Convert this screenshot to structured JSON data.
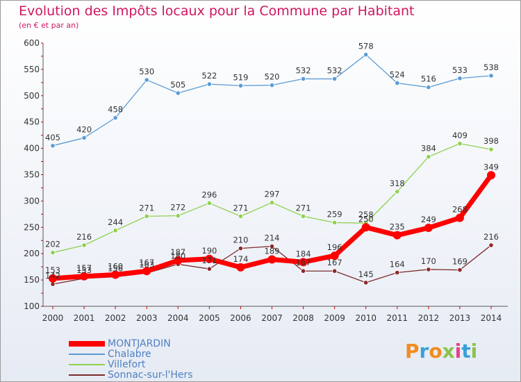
{
  "title": "Evolution des Impôts locaux pour la Commune par Habitant",
  "subtitle": "(en € et par an)",
  "logo": {
    "text": "Proxiti",
    "colors": [
      "#f28c1e",
      "#3aa0d8",
      "#f28c1e",
      "#8bc34a",
      "#e83e8c",
      "#3aa0d8",
      "#8bc34a"
    ]
  },
  "chart_data": {
    "type": "line",
    "title": "Evolution des Impôts locaux pour la Commune par Habitant",
    "ylabel": "(en € et par an)",
    "xlabel": "",
    "categories": [
      "2000",
      "2001",
      "2002",
      "2003",
      "2004",
      "2005",
      "2006",
      "2007",
      "2008",
      "2009",
      "2010",
      "2011",
      "2012",
      "2013",
      "2014"
    ],
    "ylim": [
      100,
      600
    ],
    "yticks": [
      100,
      150,
      200,
      250,
      300,
      350,
      400,
      450,
      500,
      550,
      600
    ],
    "grid": false,
    "legend_position": "bottom-left",
    "series": [
      {
        "name": "MONTJARDIN",
        "color": "#ff0000",
        "values": [
          153,
          157,
          160,
          167,
          187,
          190,
          174,
          189,
          184,
          196,
          250,
          235,
          249,
          268,
          349
        ],
        "labels": [
          "153",
          "157",
          "160",
          "167",
          "187",
          "190",
          "174",
          "189",
          "184",
          "196",
          "250",
          "235",
          "249",
          "268",
          "349"
        ]
      },
      {
        "name": "Chalabre",
        "color": "#5b9bd5",
        "values": [
          405,
          420,
          458,
          530,
          505,
          522,
          519,
          520,
          532,
          532,
          578,
          524,
          516,
          533,
          538
        ],
        "labels": [
          "405",
          "420",
          "458",
          "530",
          "505",
          "522",
          "519",
          "520",
          "532",
          "532",
          "578",
          "524",
          "516",
          "533",
          "538"
        ]
      },
      {
        "name": "Villefort",
        "color": "#8fd14f",
        "values": [
          202,
          216,
          244,
          271,
          272,
          296,
          271,
          297,
          271,
          259,
          258,
          318,
          384,
          409,
          398
        ],
        "labels": [
          "202",
          "216",
          "244",
          "271",
          "272",
          "296",
          "271",
          "297",
          "271",
          "259",
          "258",
          "318",
          "384",
          "409",
          "398"
        ]
      },
      {
        "name": "Sonnac-sur-l'Hers",
        "color": "#7b2b2b",
        "values": [
          142,
          153,
          156,
          163,
          180,
          171,
          210,
          214,
          167,
          167,
          145,
          164,
          170,
          169,
          216
        ],
        "labels": [
          "142",
          "153",
          "156",
          "163",
          "180",
          "171",
          "210",
          "214",
          "167",
          "167",
          "145",
          "164",
          "170",
          "169",
          "216"
        ]
      }
    ]
  }
}
